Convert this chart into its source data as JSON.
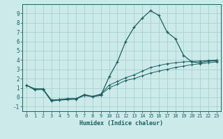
{
  "xlabel": "Humidex (Indice chaleur)",
  "bg_color": "#cdeaea",
  "grid_color": "#aacfcf",
  "line_color": "#1a6060",
  "xlim": [
    -0.5,
    23.5
  ],
  "ylim": [
    -1.5,
    10.0
  ],
  "xticks": [
    0,
    1,
    2,
    3,
    4,
    5,
    6,
    7,
    8,
    9,
    10,
    11,
    12,
    13,
    14,
    15,
    16,
    17,
    18,
    19,
    20,
    21,
    22,
    23
  ],
  "yticks": [
    -1,
    0,
    1,
    2,
    3,
    4,
    5,
    6,
    7,
    8,
    9
  ],
  "line1_x": [
    0,
    1,
    2,
    3,
    4,
    5,
    6,
    7,
    8,
    9,
    10,
    11,
    12,
    13,
    14,
    15,
    16,
    17,
    18,
    19,
    20,
    21,
    22,
    23
  ],
  "line1_y": [
    1.3,
    0.8,
    0.85,
    -0.4,
    -0.3,
    -0.25,
    -0.2,
    0.2,
    0.05,
    0.2,
    2.2,
    3.8,
    6.0,
    7.5,
    8.5,
    9.3,
    8.8,
    7.0,
    6.3,
    4.5,
    3.8,
    3.7,
    3.9,
    3.9
  ],
  "line2_x": [
    0,
    1,
    2,
    3,
    4,
    5,
    6,
    7,
    8,
    9,
    10,
    11,
    12,
    13,
    14,
    15,
    16,
    17,
    18,
    19,
    20,
    21,
    22,
    23
  ],
  "line2_y": [
    1.3,
    0.9,
    0.9,
    -0.3,
    -0.25,
    -0.15,
    -0.15,
    0.3,
    0.1,
    0.35,
    1.3,
    1.7,
    2.1,
    2.4,
    2.8,
    3.2,
    3.4,
    3.6,
    3.7,
    3.8,
    3.85,
    3.9,
    3.95,
    4.0
  ],
  "line3_x": [
    0,
    1,
    2,
    3,
    4,
    5,
    6,
    7,
    8,
    9,
    10,
    11,
    12,
    13,
    14,
    15,
    16,
    17,
    18,
    19,
    20,
    21,
    22,
    23
  ],
  "line3_y": [
    1.3,
    0.9,
    0.9,
    -0.3,
    -0.25,
    -0.15,
    -0.15,
    0.25,
    0.08,
    0.3,
    1.0,
    1.4,
    1.8,
    2.0,
    2.3,
    2.6,
    2.8,
    3.0,
    3.2,
    3.35,
    3.5,
    3.6,
    3.7,
    3.8
  ]
}
